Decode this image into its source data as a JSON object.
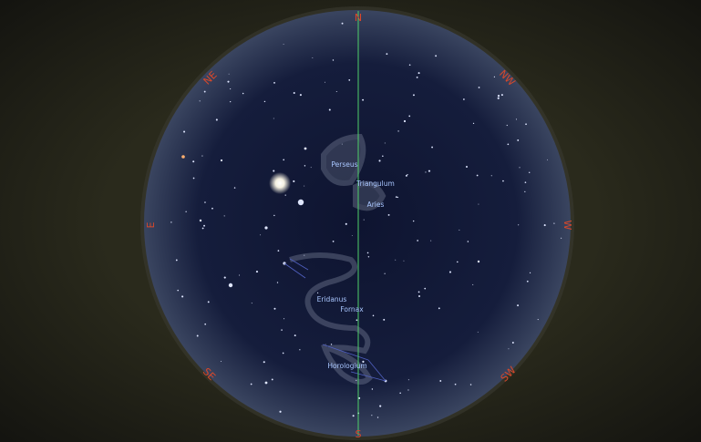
{
  "compass": {
    "north": "N",
    "south": "S",
    "east": "E",
    "west": "W",
    "northeast": "NE",
    "northwest": "NW",
    "southeast": "SE",
    "southwest": "SW"
  },
  "constellations": [
    "Perseus",
    "Triangulum",
    "Aries",
    "Eridanus",
    "Fornax",
    "Horologium"
  ]
}
